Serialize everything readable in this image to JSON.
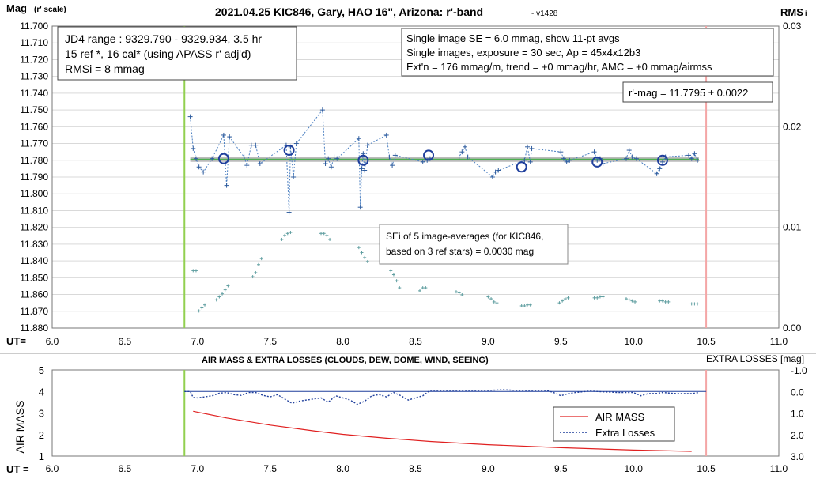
{
  "chart_data": [
    {
      "type": "scatter",
      "title": "2021.04.25 KIC846, Gary, HAO 16\", Arizona: r'-band",
      "version": "- v1428",
      "ylabel_main": "Mag",
      "ylabel_sub": "(r' scale)",
      "y2label_main": "RMS",
      "y2label_sub": "i",
      "xlabel": "UT=",
      "xlim": [
        6.0,
        11.0
      ],
      "ylim": [
        11.7,
        11.88
      ],
      "y_reversed": true,
      "y2lim": [
        0.0,
        0.03
      ],
      "x_ticks": [
        "6.0",
        "6.5",
        "7.0",
        "7.5",
        "8.0",
        "8.5",
        "9.0",
        "9.5",
        "10.0",
        "10.5",
        "11.0"
      ],
      "y_ticks": [
        "11.700",
        "11.710",
        "11.720",
        "11.730",
        "11.740",
        "11.750",
        "11.760",
        "11.770",
        "11.780",
        "11.790",
        "11.800",
        "11.810",
        "11.820",
        "11.830",
        "11.840",
        "11.850",
        "11.860",
        "11.870",
        "11.880"
      ],
      "y2_ticks": [
        "0.03",
        "0.02",
        "0.01",
        "0.00"
      ],
      "grid": true,
      "vertical_markers": [
        {
          "x": 6.91,
          "color": "#92d050"
        },
        {
          "x": 10.5,
          "color": "#f4a6a6"
        }
      ],
      "fit_line": {
        "y": 11.7795,
        "x_range": [
          6.95,
          10.45
        ],
        "color": "#4caf50"
      },
      "annotations": {
        "box1": [
          "JD4 range : 9329.790 - 9329.934,  3.5  hr",
          "15 ref *, 16 cal* (using APASS r' adj'd)",
          "RMSi = 8 mmag"
        ],
        "box2": [
          "Single image SE = 6.0 mmag, show  11-pt avgs",
          "Single images, exposure = 30 sec, Ap = 45x4x12b3",
          "Ext'n = 176 mmag/m, trend =  +0 mmag/hr, AMC = +0 mmag/airmss"
        ],
        "box3": "r'-mag = 11.7795 ± 0.0022",
        "box4": [
          "SEi of 5 image-averages (for KIC846,",
          "based on 3 ref stars) = 0.0030 mag"
        ]
      },
      "series": [
        {
          "marker": "plus",
          "color": "#2e5c9e",
          "x": [
            6.95,
            6.97,
            6.99,
            7.01,
            7.04,
            7.1,
            7.18,
            7.2,
            7.22,
            7.32,
            7.34,
            7.37,
            7.4,
            7.43,
            7.61,
            7.63,
            7.64,
            7.66,
            7.68,
            7.86,
            7.88,
            7.9,
            7.92,
            7.94,
            7.96,
            8.11,
            8.12,
            8.13,
            8.14,
            8.15,
            8.17,
            8.3,
            8.32,
            8.34,
            8.36,
            8.55,
            8.58,
            8.6,
            8.62,
            8.8,
            8.82,
            8.84,
            8.86,
            9.03,
            9.05,
            9.07,
            9.25,
            9.27,
            9.29,
            9.3,
            9.5,
            9.52,
            9.54,
            9.56,
            9.73,
            9.75,
            9.77,
            9.79,
            9.95,
            9.97,
            9.99,
            10.02,
            10.16,
            10.18,
            10.2,
            10.22,
            10.38,
            10.4,
            10.42,
            10.44
          ],
          "y": [
            11.754,
            11.773,
            11.779,
            11.784,
            11.787,
            11.779,
            11.765,
            11.795,
            11.766,
            11.778,
            11.783,
            11.771,
            11.771,
            11.782,
            11.771,
            11.811,
            11.772,
            11.79,
            11.77,
            11.75,
            11.782,
            11.779,
            11.784,
            11.778,
            11.779,
            11.767,
            11.808,
            11.785,
            11.776,
            11.786,
            11.771,
            11.765,
            11.778,
            11.783,
            11.777,
            11.781,
            11.78,
            11.779,
            11.778,
            11.778,
            11.775,
            11.772,
            11.778,
            11.79,
            11.787,
            11.786,
            11.78,
            11.772,
            11.781,
            11.773,
            11.775,
            11.779,
            11.781,
            11.78,
            11.775,
            11.78,
            11.779,
            11.782,
            11.779,
            11.774,
            11.778,
            11.779,
            11.788,
            11.785,
            11.781,
            11.778,
            11.777,
            11.779,
            11.776,
            11.78
          ]
        },
        {
          "name": "11-pt avgs",
          "marker": "circle",
          "color": "#1f3f9c",
          "x": [
            7.18,
            7.63,
            8.14,
            8.59,
            9.23,
            9.75,
            10.2
          ],
          "y": [
            11.779,
            11.774,
            11.78,
            11.777,
            11.784,
            11.781,
            11.78
          ]
        },
        {
          "name": "SEi",
          "axis": "y2",
          "marker": "plus",
          "color": "#5f9ea0",
          "x": [
            6.97,
            6.99,
            7.01,
            7.03,
            7.05,
            7.13,
            7.15,
            7.17,
            7.19,
            7.21,
            7.38,
            7.4,
            7.42,
            7.44,
            7.58,
            7.6,
            7.62,
            7.64,
            7.85,
            7.87,
            7.89,
            7.91,
            8.11,
            8.13,
            8.15,
            8.17,
            8.33,
            8.35,
            8.37,
            8.39,
            8.53,
            8.55,
            8.57,
            8.78,
            8.8,
            8.82,
            9.0,
            9.02,
            9.04,
            9.06,
            9.23,
            9.25,
            9.27,
            9.29,
            9.49,
            9.51,
            9.53,
            9.55,
            9.73,
            9.75,
            9.77,
            9.79,
            9.95,
            9.97,
            9.99,
            10.01,
            10.18,
            10.2,
            10.22,
            10.24,
            10.4,
            10.42,
            10.44
          ],
          "y": [
            0.0057,
            0.0057,
            0.0017,
            0.002,
            0.0023,
            0.0028,
            0.0031,
            0.0034,
            0.0038,
            0.0042,
            0.0051,
            0.0055,
            0.0063,
            0.0069,
            0.0088,
            0.0092,
            0.0094,
            0.0095,
            0.0094,
            0.0094,
            0.0092,
            0.0088,
            0.008,
            0.0075,
            0.007,
            0.0066,
            0.0057,
            0.0053,
            0.0047,
            0.004,
            0.0037,
            0.004,
            0.004,
            0.0036,
            0.0035,
            0.0033,
            0.0031,
            0.0029,
            0.0026,
            0.0025,
            0.0022,
            0.0022,
            0.0023,
            0.0023,
            0.0025,
            0.0027,
            0.0029,
            0.003,
            0.003,
            0.003,
            0.0031,
            0.0031,
            0.0029,
            0.0028,
            0.0027,
            0.0026,
            0.0027,
            0.0027,
            0.0026,
            0.0026,
            0.0024,
            0.0024,
            0.0024
          ]
        }
      ]
    },
    {
      "type": "line",
      "title": "AIR MASS & EXTRA LOSSES (CLOUDS, DEW, DOME, WIND, SEEING)",
      "ylabel": "AIR MASS",
      "y2label": "EXTRA LOSSES [mag]",
      "xlabel": "UT =",
      "xlim": [
        6.0,
        11.0
      ],
      "ylim": [
        1,
        5
      ],
      "y2lim": [
        -1.0,
        3.0
      ],
      "y2_reversed": true,
      "x_ticks": [
        "6.0",
        "6.5",
        "7.0",
        "7.5",
        "8.0",
        "8.5",
        "9.0",
        "9.5",
        "10.0",
        "10.5",
        "11.0"
      ],
      "y_ticks": [
        "5",
        "4",
        "3",
        "2",
        "1"
      ],
      "y2_ticks": [
        "-1.0",
        "0.0",
        "1.0",
        "2.0",
        "3.0"
      ],
      "grid": false,
      "legend": "center-right",
      "vertical_markers": [
        {
          "x": 6.91,
          "color": "#92d050"
        },
        {
          "x": 10.5,
          "color": "#f4a6a6"
        }
      ],
      "reference_line": {
        "y2": 0.0,
        "color": "#1f3f9c"
      },
      "series": [
        {
          "name": "AIR MASS",
          "axis": "y",
          "color": "#e02020",
          "style": "solid",
          "x": [
            6.97,
            7.2,
            7.5,
            7.8,
            8.0,
            8.3,
            8.6,
            9.0,
            9.5,
            10.0,
            10.4
          ],
          "y": [
            3.08,
            2.77,
            2.44,
            2.17,
            2.01,
            1.83,
            1.68,
            1.53,
            1.39,
            1.28,
            1.22
          ]
        },
        {
          "name": "Extra Losses",
          "axis": "y2",
          "color": "#1f3f9c",
          "style": "dotted",
          "x": [
            6.91,
            6.95,
            6.97,
            7.0,
            7.05,
            7.1,
            7.15,
            7.2,
            7.25,
            7.3,
            7.35,
            7.4,
            7.45,
            7.5,
            7.55,
            7.6,
            7.65,
            7.7,
            7.75,
            7.8,
            7.85,
            7.9,
            7.95,
            8.0,
            8.05,
            8.1,
            8.15,
            8.2,
            8.25,
            8.3,
            8.35,
            8.4,
            8.45,
            8.5,
            8.55,
            8.6,
            8.7,
            8.8,
            8.9,
            9.0,
            9.1,
            9.2,
            9.3,
            9.4,
            9.45,
            9.5,
            9.55,
            9.6,
            9.7,
            9.8,
            9.9,
            10.0,
            10.05,
            10.1,
            10.15,
            10.2,
            10.3,
            10.4,
            10.45
          ],
          "y": [
            0.0,
            0.0,
            0.28,
            0.3,
            0.25,
            0.2,
            0.08,
            0.05,
            0.15,
            0.18,
            0.05,
            0.05,
            0.18,
            0.25,
            0.15,
            0.35,
            0.55,
            0.45,
            0.4,
            0.35,
            0.3,
            0.5,
            0.2,
            0.3,
            0.4,
            0.6,
            0.45,
            0.2,
            0.15,
            0.25,
            0.05,
            0.2,
            0.4,
            0.3,
            0.2,
            -0.05,
            -0.05,
            -0.05,
            -0.05,
            -0.05,
            -0.08,
            -0.05,
            -0.05,
            -0.05,
            0.05,
            0.2,
            0.1,
            0.05,
            -0.02,
            0.02,
            0.05,
            0.05,
            0.2,
            0.1,
            0.1,
            0.05,
            0.1,
            0.1,
            0.05
          ]
        }
      ]
    }
  ]
}
